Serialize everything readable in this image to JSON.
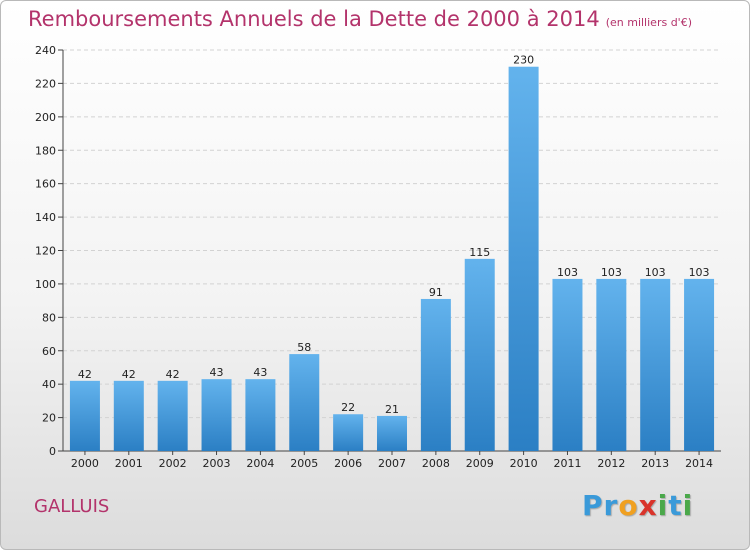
{
  "title": "Remboursements Annuels de la Dette de 2000 à 2014",
  "unit": "(en milliers d'€)",
  "place": "GALLUIS",
  "logo": {
    "letters": [
      {
        "ch": "P",
        "color": "#3a9ad9"
      },
      {
        "ch": "r",
        "color": "#3a9ad9"
      },
      {
        "ch": "o",
        "color": "#f0a020"
      },
      {
        "ch": "x",
        "color": "#d9342b"
      },
      {
        "ch": "i",
        "color": "#4aa84a"
      },
      {
        "ch": "t",
        "color": "#3a9ad9"
      },
      {
        "ch": "i",
        "color": "#4aa84a"
      }
    ]
  },
  "colors": {
    "bar_light": "#63b3ed",
    "bar_dark": "#2b7fc4",
    "text_accent": "#b3336b"
  },
  "chart_data": {
    "type": "bar",
    "categories": [
      "2000",
      "2001",
      "2002",
      "2003",
      "2004",
      "2005",
      "2006",
      "2007",
      "2008",
      "2009",
      "2010",
      "2011",
      "2012",
      "2013",
      "2014"
    ],
    "values": [
      42,
      42,
      42,
      43,
      43,
      58,
      22,
      21,
      91,
      115,
      230,
      103,
      103,
      103,
      103
    ],
    "ylim": [
      0,
      240
    ],
    "yticks": [
      0,
      20,
      40,
      60,
      80,
      100,
      120,
      140,
      160,
      180,
      200,
      220,
      240
    ],
    "grid": true,
    "data_labels": true
  }
}
